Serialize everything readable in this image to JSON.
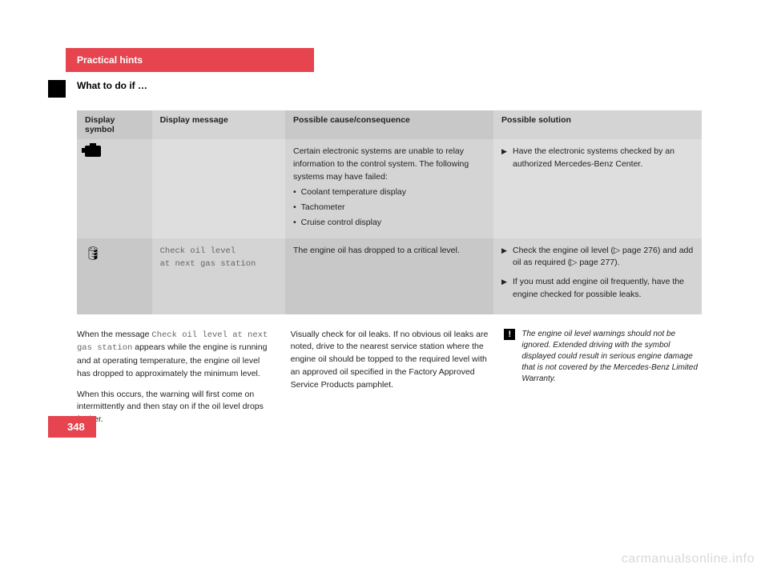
{
  "header": {
    "section_title": "Practical hints",
    "subsection_title": "What to do if …"
  },
  "table": {
    "columns": [
      "Display symbol",
      "Display message",
      "Possible cause/consequence",
      "Possible solution"
    ],
    "rows": [
      {
        "symbol": "engine",
        "message": "",
        "cause_intro": "Certain electronic systems are unable to relay information to the control system. The following systems may have failed:",
        "cause_bullets": [
          "Coolant temperature display",
          "Tachometer",
          "Cruise control display"
        ],
        "solution_items": [
          "Have the electronic systems checked by an authorized Mercedes-Benz Center."
        ]
      },
      {
        "symbol": "oil",
        "message_line1": "Check oil level",
        "message_line2": "at next gas station",
        "cause": "The engine oil has dropped to a critical level.",
        "solution_items": [
          "Check the engine oil level (▷ page 276) and add oil as required (▷ page 277).",
          "If you must add engine oil frequently, have the engine checked for possible leaks."
        ]
      }
    ]
  },
  "body_columns": {
    "col1_p1a": "When the message ",
    "col1_p1b_mono": "Check oil level at next gas station",
    "col1_p1c": " appears while the engine is running and at operating temperature, the engine oil level has dropped to approximately the minimum level.",
    "col1_p2": "When this occurs, the warning will first come on intermittently and then stay on if the oil level drops further.",
    "col2_p1": "Visually check for oil leaks. If no obvious oil leaks are noted, drive to the nearest service station where the engine oil should be topped to the required level with an approved oil specified in the Factory Approved Service Products pamphlet.",
    "col3_notice": "The engine oil level warnings should not be ignored. Extended driving with the symbol displayed could result in serious engine damage that is not covered by the Mercedes-Benz Limited Warranty."
  },
  "page_number": "348",
  "watermark": "carmanualsonline.info",
  "colors": {
    "accent": "#e6454f",
    "gray_dark": "#c8c8c8",
    "gray_mid": "#d4d4d4",
    "gray_light": "#dedede"
  }
}
